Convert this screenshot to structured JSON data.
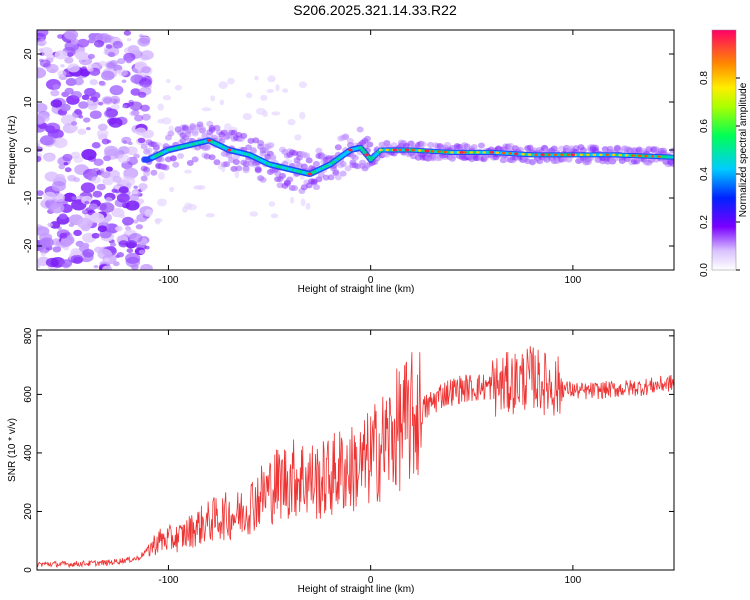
{
  "title": "S206.2025.321.14.33.R22",
  "chart_data": [
    {
      "type": "heatmap",
      "title": "S206.2025.321.14.33.R22",
      "xlabel": "Height of straight line (km)",
      "ylabel": "Frequency (Hz)",
      "xlim": [
        -165,
        150
      ],
      "ylim": [
        -25,
        25
      ],
      "xticks": [
        -100,
        0,
        100
      ],
      "yticks": [
        -20,
        -10,
        0,
        10,
        20
      ],
      "colorbar": {
        "label": "Normalized spectral amplitude",
        "range": [
          0,
          1
        ],
        "ticks": [
          0.0,
          0.2,
          0.4,
          0.6,
          0.8
        ]
      },
      "ridge": {
        "x": [
          -110,
          -100,
          -90,
          -80,
          -70,
          -60,
          -50,
          -40,
          -30,
          -20,
          -10,
          -5,
          0,
          5,
          10,
          20,
          40,
          60,
          80,
          100,
          120,
          150
        ],
        "y": [
          -2,
          0,
          1,
          2,
          0,
          -1,
          -3,
          -4,
          -5,
          -3,
          0,
          0.5,
          -2,
          0,
          0,
          0,
          -0.5,
          -0.5,
          -1,
          -1,
          -1,
          -1.5
        ]
      }
    },
    {
      "type": "line",
      "xlabel": "Height of straight line (km)",
      "ylabel": "SNR (10 * v/v)",
      "xlim": [
        -165,
        150
      ],
      "ylim": [
        0,
        820
      ],
      "xticks": [
        -100,
        0,
        100
      ],
      "yticks": [
        0,
        200,
        400,
        600,
        800
      ],
      "series": [
        {
          "name": "SNR",
          "color": "#ee3333",
          "x": [
            -165,
            -150,
            -130,
            -115,
            -105,
            -95,
            -85,
            -75,
            -65,
            -55,
            -45,
            -35,
            -25,
            -15,
            -5,
            5,
            15,
            25,
            35,
            45,
            55,
            65,
            75,
            80,
            85,
            95,
            105,
            115,
            125,
            135,
            150
          ],
          "y": [
            20,
            20,
            25,
            40,
            100,
            110,
            150,
            180,
            190,
            250,
            300,
            320,
            300,
            340,
            350,
            420,
            490,
            540,
            600,
            620,
            625,
            630,
            650,
            660,
            640,
            620,
            610,
            615,
            620,
            625,
            640
          ]
        }
      ]
    }
  ]
}
